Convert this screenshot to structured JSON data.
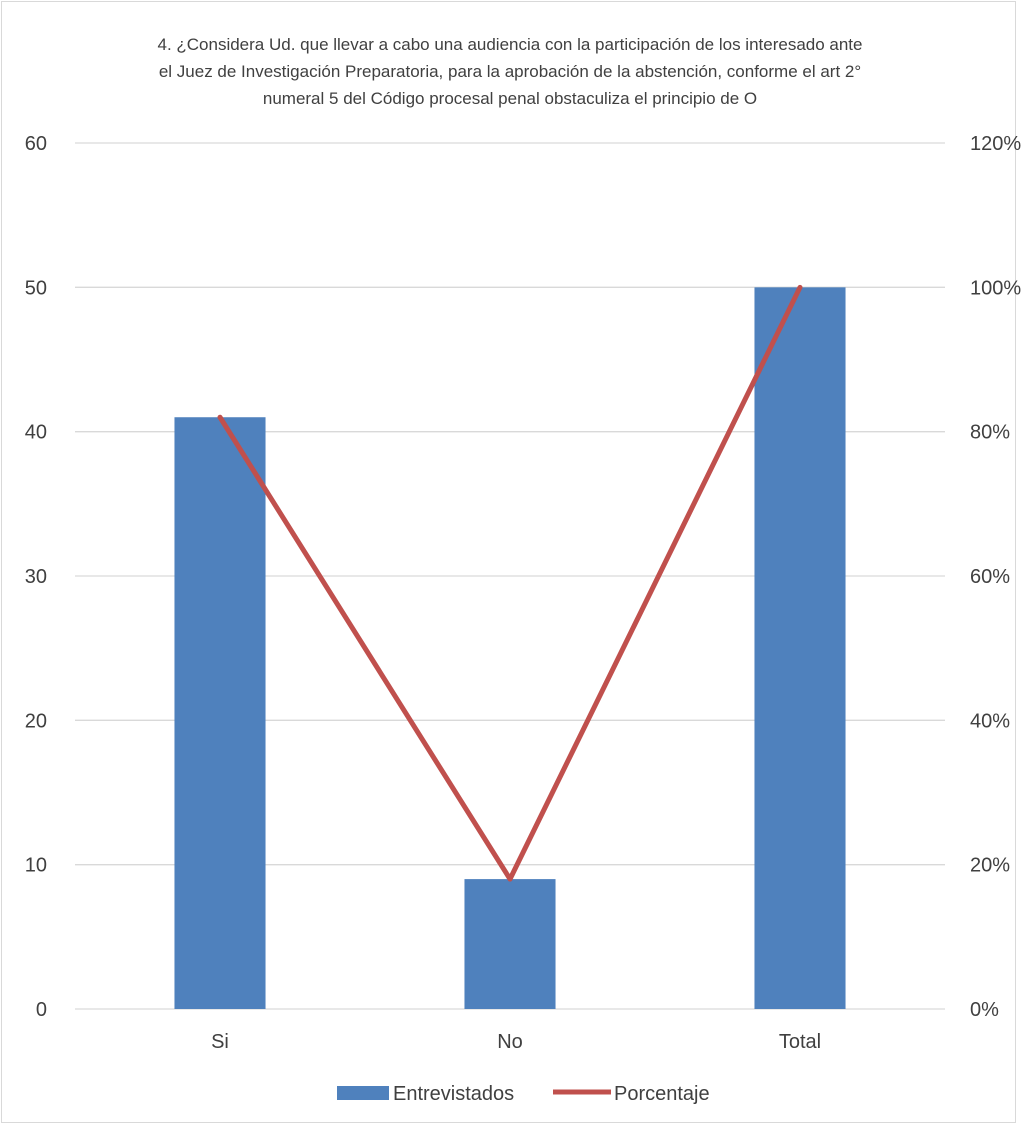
{
  "chart_data": {
    "type": "bar",
    "title_lines": [
      "4. ¿Considera Ud. que  llevar a cabo una audiencia con la participación de los interesado ante",
      "el Juez de Investigación Preparatoria, para la aprobación de la abstención, conforme el art 2°",
      "numeral 5 del Código procesal penal obstaculiza el principio de O"
    ],
    "categories": [
      "Si",
      "No",
      "Total"
    ],
    "series": [
      {
        "name": "Entrevistados",
        "type": "bar",
        "axis": "left",
        "values": [
          41,
          9,
          50
        ],
        "color": "#4f81bd"
      },
      {
        "name": "Porcentaje",
        "type": "line",
        "axis": "right",
        "values": [
          0.82,
          0.18,
          1.0
        ],
        "color": "#c0504d"
      }
    ],
    "y_left": {
      "min": 0,
      "max": 60,
      "ticks": [
        "0",
        "10",
        "20",
        "30",
        "40",
        "50",
        "60"
      ]
    },
    "y_right": {
      "min": 0,
      "max": 1.2,
      "ticks": [
        "0%",
        "20%",
        "40%",
        "60%",
        "80%",
        "100%",
        "120%"
      ]
    },
    "grid": true,
    "legend_position": "bottom"
  }
}
